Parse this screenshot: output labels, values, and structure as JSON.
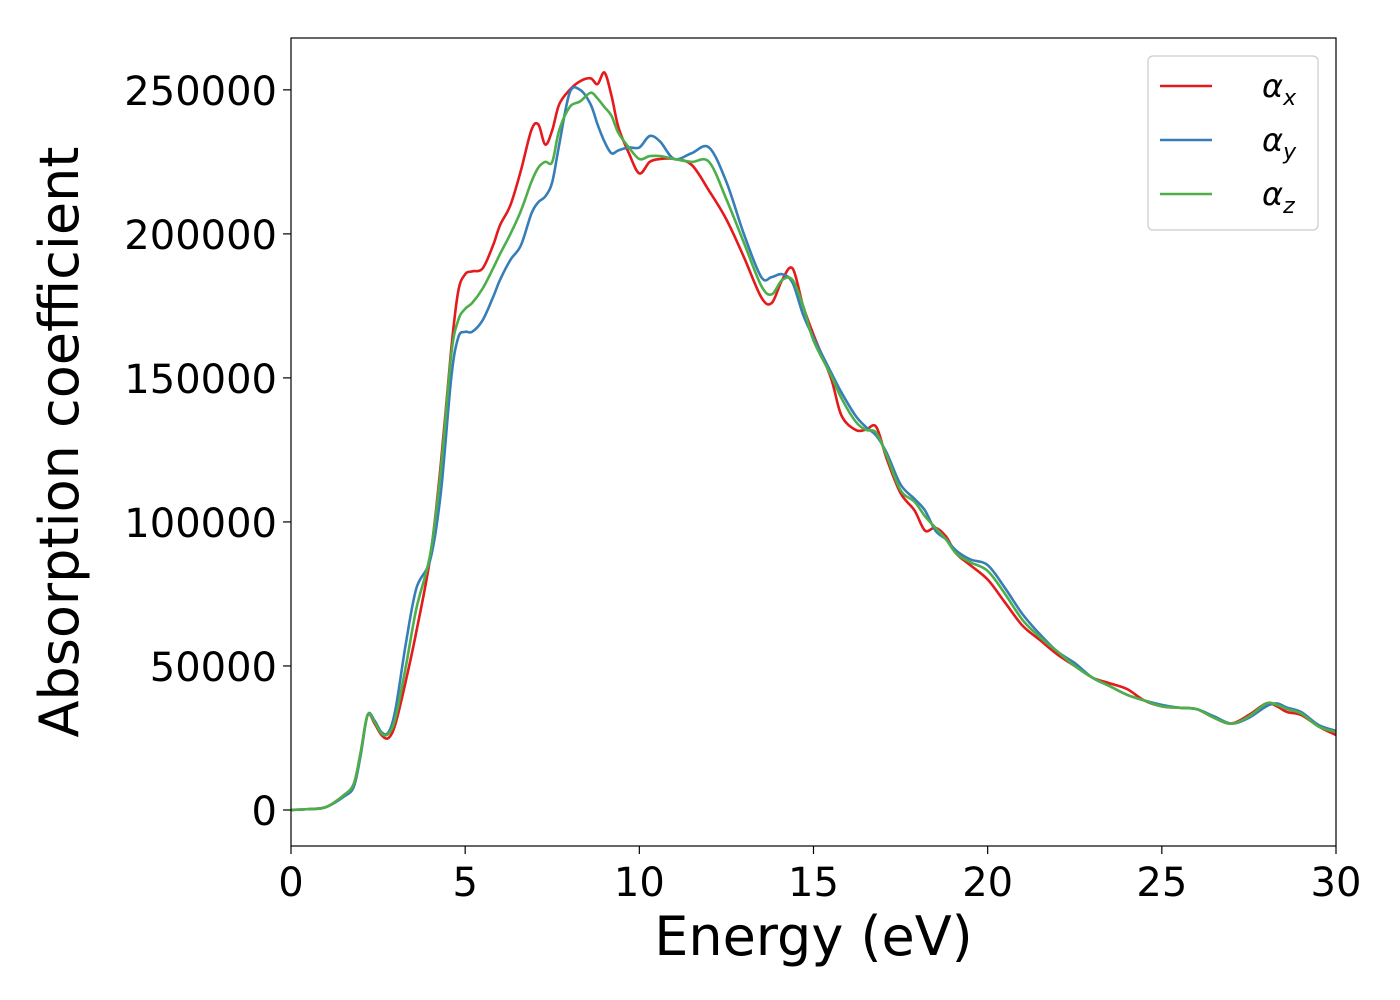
{
  "chart_data": {
    "type": "line",
    "title": "",
    "xlabel": "Energy (eV)",
    "ylabel": "Absorption coefficient",
    "xlim": [
      0,
      30
    ],
    "ylim": [
      -12500,
      268000
    ],
    "xticks": [
      0,
      5,
      10,
      15,
      20,
      25,
      30
    ],
    "xtick_labels": [
      "0",
      "5",
      "10",
      "15",
      "20",
      "25",
      "30"
    ],
    "yticks": [
      0,
      50000,
      100000,
      150000,
      200000,
      250000
    ],
    "ytick_labels": [
      "0",
      "50000",
      "100000",
      "150000",
      "200000",
      "250000"
    ],
    "grid": false,
    "legend_position": "top-right",
    "series": [
      {
        "name": "αx",
        "name_base": "α",
        "name_sub": "x",
        "color": "#e41a1c",
        "x": [
          0,
          0.5,
          1.0,
          1.5,
          1.8,
          2.0,
          2.2,
          2.4,
          2.6,
          2.8,
          3.0,
          3.3,
          3.6,
          4.0,
          4.3,
          4.6,
          4.8,
          5.0,
          5.2,
          5.5,
          5.8,
          6.0,
          6.3,
          6.6,
          6.9,
          7.1,
          7.3,
          7.5,
          7.7,
          8.0,
          8.3,
          8.6,
          8.8,
          9.0,
          9.2,
          9.4,
          9.7,
          10.0,
          10.3,
          10.6,
          11.0,
          11.5,
          12.0,
          12.5,
          13.0,
          13.5,
          13.8,
          14.1,
          14.4,
          14.7,
          15.0,
          15.5,
          15.8,
          16.2,
          16.5,
          16.8,
          17.1,
          17.5,
          17.9,
          18.2,
          18.5,
          18.8,
          19.1,
          19.5,
          20.0,
          20.5,
          21.0,
          21.5,
          22.0,
          22.5,
          23.0,
          23.5,
          24.0,
          24.5,
          25.0,
          25.5,
          26.0,
          26.5,
          27.0,
          27.5,
          28.0,
          28.3,
          28.6,
          29.0,
          29.5,
          30.0
        ],
        "y": [
          0,
          300,
          1000,
          5000,
          9000,
          20000,
          33000,
          30000,
          26000,
          25000,
          30000,
          45000,
          62000,
          88000,
          120000,
          160000,
          180000,
          186000,
          187000,
          188000,
          196000,
          203000,
          210000,
          222000,
          236000,
          238000,
          231000,
          236000,
          245000,
          250000,
          253000,
          254000,
          252000,
          256000,
          248000,
          237000,
          228000,
          221000,
          225000,
          226000,
          226000,
          224000,
          215000,
          205000,
          192000,
          178000,
          176000,
          184000,
          188000,
          175000,
          165000,
          150000,
          137000,
          132000,
          132000,
          133000,
          122000,
          110000,
          104000,
          97000,
          98000,
          95000,
          89000,
          85000,
          80000,
          72000,
          64000,
          59000,
          54000,
          50000,
          46000,
          44000,
          42000,
          38000,
          36000,
          35500,
          35000,
          32000,
          30000,
          33000,
          37000,
          36000,
          34000,
          33000,
          29000,
          26000
        ]
      },
      {
        "name": "αy",
        "name_base": "α",
        "name_sub": "y",
        "color": "#377eb8",
        "x": [
          0,
          0.5,
          1.0,
          1.5,
          1.8,
          2.0,
          2.2,
          2.4,
          2.6,
          2.8,
          3.0,
          3.3,
          3.6,
          4.0,
          4.3,
          4.6,
          4.8,
          5.0,
          5.2,
          5.5,
          5.8,
          6.0,
          6.3,
          6.6,
          6.9,
          7.1,
          7.3,
          7.5,
          7.7,
          8.0,
          8.3,
          8.6,
          8.8,
          9.0,
          9.2,
          9.4,
          9.7,
          10.0,
          10.3,
          10.6,
          11.0,
          11.5,
          12.0,
          12.5,
          13.0,
          13.5,
          13.8,
          14.1,
          14.4,
          14.7,
          15.0,
          15.5,
          15.8,
          16.2,
          16.5,
          16.8,
          17.1,
          17.5,
          17.9,
          18.2,
          18.5,
          18.8,
          19.1,
          19.5,
          20.0,
          20.5,
          21.0,
          21.5,
          22.0,
          22.5,
          23.0,
          23.5,
          24.0,
          24.5,
          25.0,
          25.5,
          26.0,
          26.5,
          27.0,
          27.5,
          28.0,
          28.3,
          28.6,
          29.0,
          29.5,
          30.0
        ],
        "y": [
          0,
          300,
          1000,
          4500,
          8000,
          19000,
          33000,
          31000,
          27000,
          27000,
          35000,
          58000,
          77000,
          87000,
          110000,
          150000,
          164000,
          166000,
          166000,
          170000,
          178000,
          184000,
          191000,
          196000,
          207000,
          211000,
          213000,
          218000,
          231000,
          249000,
          250000,
          245000,
          238000,
          232000,
          228000,
          229000,
          230000,
          230000,
          234000,
          232000,
          226000,
          228000,
          230000,
          218000,
          200000,
          185000,
          185000,
          186000,
          183000,
          172000,
          164000,
          152000,
          145000,
          137000,
          133000,
          130000,
          124000,
          113000,
          108000,
          104000,
          97000,
          94000,
          90000,
          87000,
          85000,
          77000,
          68000,
          61000,
          55000,
          51000,
          46000,
          43000,
          40000,
          38000,
          36500,
          35500,
          35000,
          32500,
          30000,
          32000,
          36000,
          37000,
          35500,
          34000,
          29500,
          27500
        ]
      },
      {
        "name": "αz",
        "name_base": "α",
        "name_sub": "z",
        "color": "#4daf4a",
        "x": [
          0,
          0.5,
          1.0,
          1.5,
          1.8,
          2.0,
          2.2,
          2.4,
          2.6,
          2.8,
          3.0,
          3.3,
          3.6,
          4.0,
          4.3,
          4.6,
          4.8,
          5.0,
          5.2,
          5.5,
          5.8,
          6.0,
          6.3,
          6.6,
          6.9,
          7.1,
          7.3,
          7.5,
          7.7,
          8.0,
          8.3,
          8.6,
          8.8,
          9.0,
          9.2,
          9.4,
          9.7,
          10.0,
          10.3,
          10.6,
          11.0,
          11.5,
          12.0,
          12.5,
          13.0,
          13.5,
          13.8,
          14.1,
          14.4,
          14.7,
          15.0,
          15.5,
          15.8,
          16.2,
          16.5,
          16.8,
          17.1,
          17.5,
          17.9,
          18.2,
          18.5,
          18.8,
          19.1,
          19.5,
          20.0,
          20.5,
          21.0,
          21.5,
          22.0,
          22.5,
          23.0,
          23.5,
          24.0,
          24.5,
          25.0,
          25.5,
          26.0,
          26.5,
          27.0,
          27.5,
          28.0,
          28.3,
          28.6,
          29.0,
          29.5,
          30.0
        ],
        "y": [
          0,
          300,
          1000,
          5000,
          9000,
          20000,
          33000,
          30500,
          26500,
          26500,
          32000,
          50000,
          70000,
          89000,
          118000,
          158000,
          170000,
          174000,
          176000,
          181000,
          188000,
          193000,
          200000,
          208000,
          218000,
          223000,
          225000,
          225000,
          236000,
          244000,
          246000,
          249000,
          247000,
          244000,
          241000,
          235000,
          230000,
          226000,
          227000,
          227000,
          226000,
          225000,
          225000,
          212000,
          197000,
          182000,
          179000,
          184000,
          184000,
          175000,
          163000,
          151000,
          143000,
          135000,
          132000,
          131000,
          123000,
          111000,
          107000,
          102000,
          98000,
          94000,
          89000,
          86000,
          83000,
          75000,
          66000,
          60000,
          55000,
          50000,
          46000,
          43000,
          40000,
          38000,
          36000,
          35500,
          35000,
          32000,
          30000,
          32500,
          37000,
          36500,
          35000,
          33500,
          29000,
          27000
        ]
      }
    ]
  }
}
